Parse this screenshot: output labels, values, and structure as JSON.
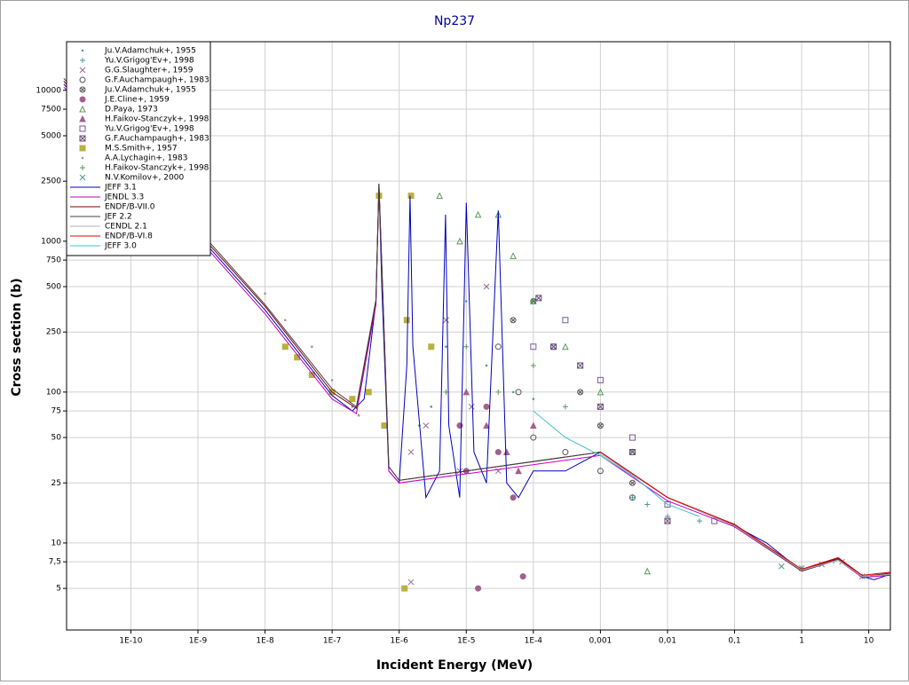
{
  "chart_data": {
    "type": "scatter",
    "title": "Np237",
    "x_label": "Incident Energy (MeV)",
    "y_label": "Cross section (b)",
    "xscale": "log",
    "yscale": "log",
    "grid": true,
    "legend": "upper left",
    "xlim": [
      1.1e-11,
      21
    ],
    "ylim": [
      2.65,
      21000
    ],
    "xticks": [
      {
        "value": 1e-10,
        "label": "1E-10"
      },
      {
        "value": 1e-09,
        "label": "1E-9"
      },
      {
        "value": 1e-08,
        "label": "1E-8"
      },
      {
        "value": 1e-07,
        "label": "1E-7"
      },
      {
        "value": 1e-06,
        "label": "1E-6"
      },
      {
        "value": 1e-05,
        "label": "1E-5"
      },
      {
        "value": 0.0001,
        "label": "1E-4"
      },
      {
        "value": 0.001,
        "label": "0,001"
      },
      {
        "value": 0.01,
        "label": "0,01"
      },
      {
        "value": 0.1,
        "label": "0,1"
      },
      1,
      10
    ],
    "yticks": [
      5,
      {
        "value": 7.5,
        "label": "7,5"
      },
      10,
      25,
      50,
      75,
      100,
      250,
      500,
      750,
      1000,
      2500,
      5000,
      7500,
      10000
    ],
    "series": [
      {
        "name": "Ju.V.Adamchuk+, 1955",
        "marker": "dot",
        "color": "#4a9a9a",
        "x": [
          2e-06,
          3e-06,
          5e-06,
          1e-05,
          2e-05,
          5e-05,
          0.0001
        ],
        "values": [
          60,
          80,
          200,
          400,
          150,
          100,
          90
        ]
      },
      {
        "name": "Yu.V.Grigog'Ev+, 1998",
        "marker": "plus",
        "color": "#4a9a9a",
        "x": [
          0.003,
          0.005,
          0.01,
          0.03,
          0.1,
          1,
          3,
          8
        ],
        "values": [
          20,
          18,
          15,
          14,
          13,
          6.8,
          7.6,
          6
        ]
      },
      {
        "name": "G.G.Slaughter+, 1959",
        "marker": "cross",
        "color": "#9a6a9a",
        "x": [
          1.5e-06,
          2.5e-06,
          5e-06,
          8e-06,
          1.2e-05,
          2e-05,
          3e-05,
          1.5e-06
        ],
        "values": [
          40,
          60,
          300,
          30,
          80,
          500,
          30,
          5.5
        ]
      },
      {
        "name": "G.F.Auchampaugh+, 1983",
        "marker": "circle",
        "color": "#555555",
        "x": [
          3e-05,
          6e-05,
          0.0001,
          0.0003,
          0.001,
          0.003
        ],
        "values": [
          200,
          100,
          50,
          40,
          30,
          20
        ]
      },
      {
        "name": "Ju.V.Adamchuk+, 1955",
        "marker": "circle-x",
        "color": "#555555",
        "x": [
          5e-05,
          0.0001,
          0.0002,
          0.0005,
          0.001,
          0.003
        ],
        "values": [
          300,
          400,
          200,
          100,
          60,
          25
        ]
      },
      {
        "name": "J.E.Cline+, 1959",
        "marker": "disc",
        "color": "#a0608f",
        "x": [
          8e-06,
          1e-05,
          1.5e-05,
          2e-05,
          3e-05,
          5e-05,
          7e-05
        ],
        "values": [
          60,
          30,
          5,
          80,
          40,
          20,
          6
        ]
      },
      {
        "name": "D.Paya, 1973",
        "marker": "triangle",
        "color": "#5a9a5a",
        "x": [
          4e-06,
          8e-06,
          1.5e-05,
          3e-05,
          5e-05,
          0.0001,
          0.0003,
          0.001,
          0.003,
          0.005
        ],
        "values": [
          2000,
          1000,
          1500,
          1500,
          800,
          400,
          200,
          100,
          40,
          6.5
        ]
      },
      {
        "name": "H.Faikov-Stanczyk+, 1998",
        "marker": "triangle-filled",
        "color": "#a0608f",
        "x": [
          1e-05,
          2e-05,
          4e-05,
          6e-05,
          0.0001
        ],
        "values": [
          100,
          60,
          40,
          30,
          60
        ]
      },
      {
        "name": "Yu.V.Grigog'Ev+, 1998",
        "marker": "square",
        "color": "#7a5a9a",
        "x": [
          0.0001,
          0.0003,
          0.001,
          0.003,
          0.01,
          0.05
        ],
        "values": [
          200,
          300,
          120,
          50,
          18,
          14
        ]
      },
      {
        "name": "G.F.Auchampaugh+, 1983",
        "marker": "square-x",
        "color": "#6a4a7a",
        "x": [
          0.00012,
          0.0002,
          0.0005,
          0.001,
          0.003,
          0.01
        ],
        "values": [
          420,
          200,
          150,
          80,
          40,
          14
        ]
      },
      {
        "name": "M.S.Smith+, 1957",
        "marker": "square-filled",
        "color": "#b8b040",
        "x": [
          2e-08,
          3e-08,
          5e-08,
          1e-07,
          2e-07,
          3.5e-07,
          5e-07,
          6e-07,
          1.3e-06,
          1.5e-06,
          3e-06,
          1.2e-06
        ],
        "values": [
          200,
          170,
          130,
          100,
          90,
          100,
          2000,
          60,
          300,
          2000,
          200,
          5
        ]
      },
      {
        "name": "A.A.Lychagin+, 1983",
        "marker": "dot",
        "color": "#c080a0",
        "x": [
          1e-08,
          2e-08,
          5e-08,
          1e-07,
          2e-07,
          2.5e-07
        ],
        "values": [
          450,
          300,
          200,
          120,
          80,
          70
        ]
      },
      {
        "name": "H.Faikov-Stanczyk+, 1998",
        "marker": "plus",
        "color": "#5a9a5a",
        "x": [
          5e-06,
          1e-05,
          3e-05,
          0.0001,
          0.0003
        ],
        "values": [
          100,
          200,
          100,
          150,
          80
        ]
      },
      {
        "name": "N.V.Komilov+, 2000",
        "marker": "cross",
        "color": "#4a9a8a",
        "x": [
          0.5,
          1,
          2,
          4,
          8
        ],
        "values": [
          7,
          6.8,
          7.2,
          7.5,
          6
        ]
      },
      {
        "name": "JEFF 3.1",
        "marker": "line",
        "color": "#0000c0",
        "x": [
          1e-11,
          1e-10,
          1e-09,
          1e-08,
          1e-07,
          2e-07,
          3e-07,
          4.5e-07,
          5e-07,
          5.5e-07,
          7e-07,
          1e-06,
          1.3e-06,
          1.45e-06,
          1.6e-06,
          2.5e-06,
          4e-06,
          4.9e-06,
          5.5e-06,
          8e-06,
          1e-05,
          1.3e-05,
          2e-05,
          3e-05,
          4e-05,
          6e-05,
          0.0001,
          0.0003,
          0.001,
          0.01,
          0.1,
          0.3,
          1,
          3.5,
          8,
          12,
          21
        ],
        "values": [
          11000,
          3500,
          1100,
          350,
          95,
          75,
          90,
          400,
          2400,
          500,
          30,
          25,
          150,
          2000,
          200,
          20,
          30,
          1500,
          60,
          20,
          1800,
          40,
          25,
          1600,
          25,
          20,
          30,
          30,
          40,
          20,
          13,
          10,
          6.5,
          7.8,
          6,
          5.7,
          6.2
        ]
      },
      {
        "name": "JENDL 3.3",
        "marker": "line",
        "color": "#c000c0",
        "x": [
          1e-11,
          1e-10,
          1e-09,
          1e-08,
          1e-07,
          2.3e-07,
          4.5e-07,
          5e-07,
          7e-07,
          1e-06,
          0.001,
          0.01,
          0.1,
          1,
          3.5,
          8,
          21
        ],
        "values": [
          10500,
          3300,
          1050,
          330,
          90,
          72,
          380,
          2300,
          30,
          25,
          38,
          19,
          12.8,
          6.5,
          7.7,
          5.9,
          6.1
        ]
      },
      {
        "name": "ENDF/B-VII.0",
        "marker": "line",
        "color": "#800000",
        "x": [
          1e-11,
          1e-10,
          1e-09,
          1e-08,
          1e-07,
          2.3e-07,
          4.5e-07,
          5e-07,
          7e-07,
          1e-06,
          0.001,
          0.01,
          0.1,
          1,
          3.5,
          8,
          21
        ],
        "values": [
          11500,
          3600,
          1150,
          370,
          100,
          78,
          400,
          2400,
          32,
          26,
          40,
          20,
          13.2,
          6.6,
          7.9,
          6,
          6.3
        ]
      },
      {
        "name": "JEF 2.2",
        "marker": "line",
        "color": "#404040",
        "x": [
          1e-11,
          1e-10,
          1e-09,
          1e-08,
          1e-07,
          2.3e-07,
          4.5e-07,
          5e-07,
          7e-07,
          1e-06,
          0.001,
          0.01,
          0.1,
          1,
          3.5,
          8,
          21
        ],
        "values": [
          12000,
          3800,
          1200,
          380,
          105,
          80,
          410,
          2400,
          32,
          26,
          40,
          20,
          13,
          6.5,
          7.8,
          6,
          6.2
        ]
      },
      {
        "name": "CENDL 2.1",
        "marker": "line",
        "color": "#b0b0b0",
        "x": [
          0.001,
          0.01,
          0.1,
          1,
          3.5,
          8,
          21
        ],
        "values": [
          39,
          20,
          13,
          6.6,
          7.7,
          6,
          6.2
        ]
      },
      {
        "name": "ENDF/B-VI.8",
        "marker": "line",
        "color": "#e00000",
        "x": [
          0.001,
          0.01,
          0.1,
          1,
          3.5,
          8,
          21
        ],
        "values": [
          40,
          20,
          13.3,
          6.7,
          8,
          6.1,
          6.4
        ]
      },
      {
        "name": "JEFF 3.0",
        "marker": "line",
        "color": "#40c0d0",
        "x": [
          0.0001,
          0.0003,
          0.001,
          0.003,
          0.01,
          0.03
        ],
        "values": [
          75,
          50,
          38,
          28,
          18,
          15
        ]
      }
    ]
  }
}
